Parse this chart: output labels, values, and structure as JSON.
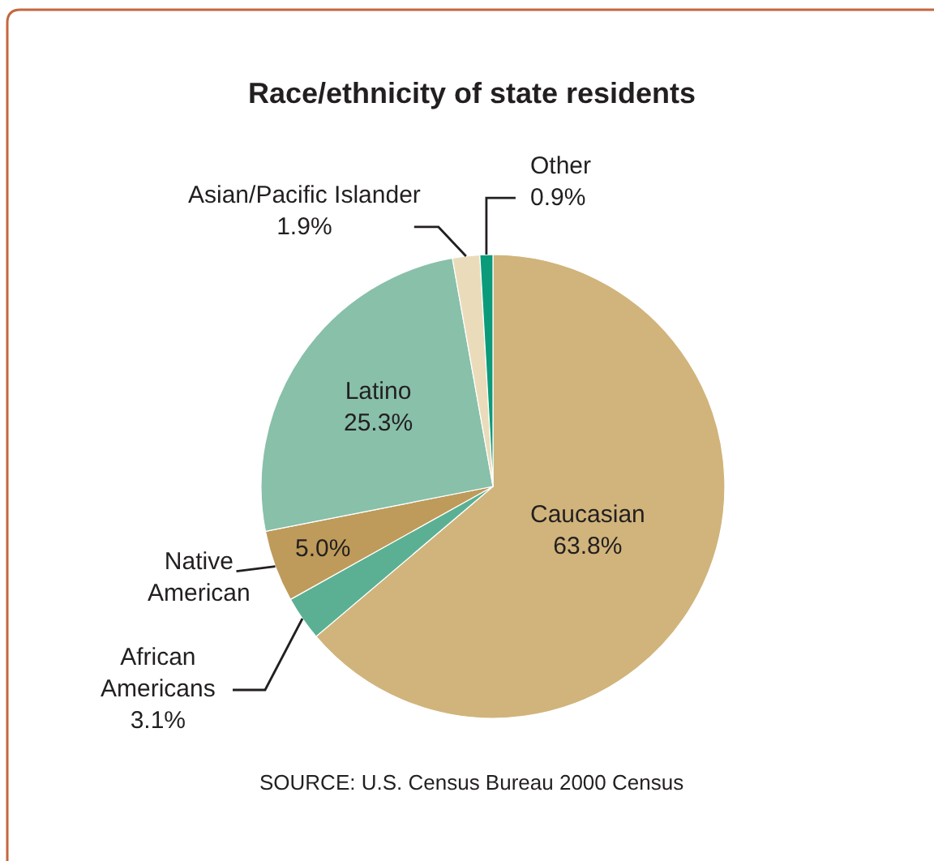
{
  "chart_data": {
    "type": "pie",
    "title": "Race/ethnicity of state residents",
    "categories": [
      "Caucasian",
      "African Americans",
      "Native American",
      "Latino",
      "Asian/Pacific Islander",
      "Other"
    ],
    "values": [
      63.8,
      3.1,
      5.0,
      25.3,
      1.9,
      0.9
    ],
    "colors": [
      "#d0b47b",
      "#5bb094",
      "#be9b5a",
      "#88c0aa",
      "#eadcba",
      "#0b9b7a"
    ],
    "value_labels": [
      "63.8%",
      "3.1%",
      "5.0%",
      "25.3%",
      "1.9%",
      "0.9%"
    ],
    "annotations": [
      "SOURCE: U.S. Census Bureau 2000 Census"
    ]
  }
}
